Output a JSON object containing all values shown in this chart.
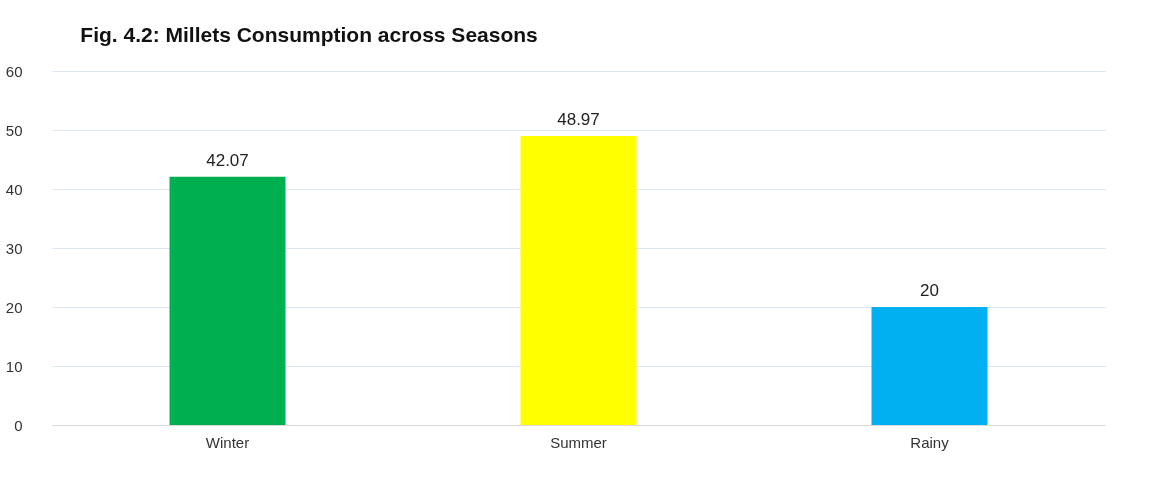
{
  "chart_data": {
    "type": "bar",
    "title": "Fig. 4.2: Millets Consumption across Seasons",
    "categories": [
      "Winter",
      "Summer",
      "Rainy"
    ],
    "values": [
      42.07,
      48.97,
      20
    ],
    "colors": [
      "#00b050",
      "#ffff00",
      "#00b0f0"
    ],
    "ylim": [
      0,
      60
    ],
    "yticks": [
      0,
      10,
      20,
      30,
      40,
      50,
      60
    ],
    "grid": "y",
    "data_labels": true
  }
}
